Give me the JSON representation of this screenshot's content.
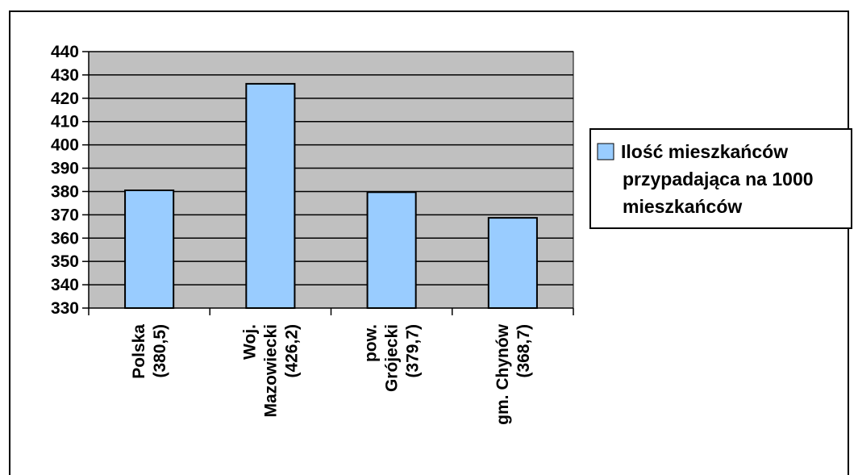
{
  "chart_data": {
    "type": "bar",
    "categories": [
      [
        "Polska",
        "(380,5)"
      ],
      [
        "Woj.",
        "Mazowiecki",
        "(426,2)"
      ],
      [
        "pow.",
        "Grójecki",
        "(379,7)"
      ],
      [
        "gm. Chynów",
        "(368,7)"
      ]
    ],
    "series": [
      {
        "name": "Ilość mieszkańców przypadająca na 1000 mieszkańców",
        "name_lines": [
          "Ilość mieszkańców",
          "przypadająca na 1000",
          "mieszkańców"
        ],
        "values": [
          380.5,
          426.2,
          379.7,
          368.7
        ],
        "color": "#99ccff"
      }
    ],
    "ylim": [
      330,
      440
    ],
    "yticks": [
      330,
      340,
      350,
      360,
      370,
      380,
      390,
      400,
      410,
      420,
      430,
      440
    ],
    "grid": true,
    "plot_background": "#c0c0c0",
    "legend_position": "right"
  }
}
